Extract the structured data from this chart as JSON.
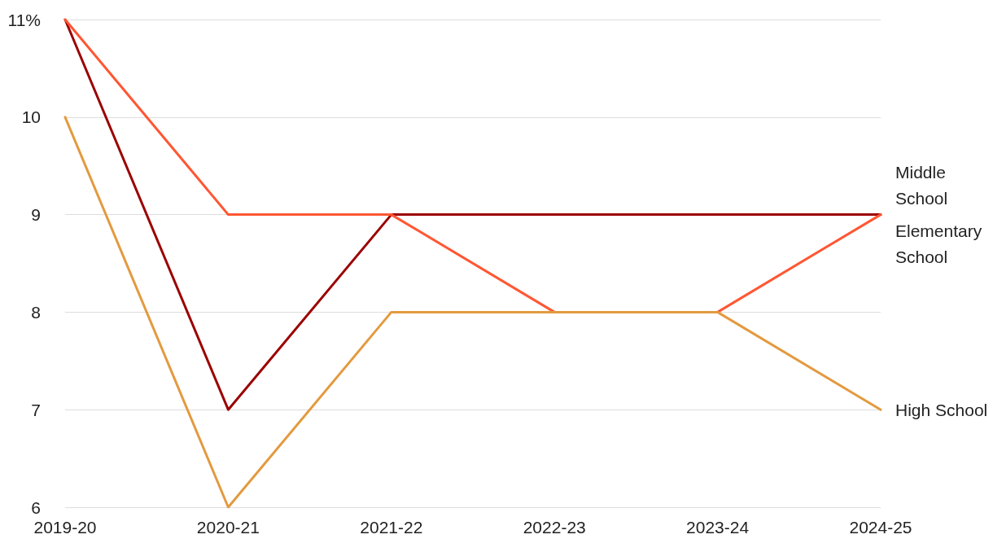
{
  "chart_data": {
    "type": "line",
    "categories": [
      "2019-20",
      "2020-21",
      "2021-22",
      "2022-23",
      "2023-24",
      "2024-25"
    ],
    "series": [
      {
        "name": "Middle School",
        "color": "#9b0000",
        "values": [
          11,
          7,
          9,
          9,
          9,
          9
        ]
      },
      {
        "name": "Elementary School",
        "color": "#ff5733",
        "values": [
          11,
          9,
          9,
          8,
          8,
          9
        ]
      },
      {
        "name": "High School",
        "color": "#e39a3f",
        "values": [
          10,
          6,
          8,
          8,
          8,
          7
        ]
      }
    ],
    "ylim": [
      6,
      11
    ],
    "yticks": [
      6,
      7,
      8,
      9,
      10,
      {
        "value": 11,
        "label": "11%"
      }
    ],
    "grid": "y",
    "legend": false,
    "marker": "none",
    "line_style": "solid"
  }
}
